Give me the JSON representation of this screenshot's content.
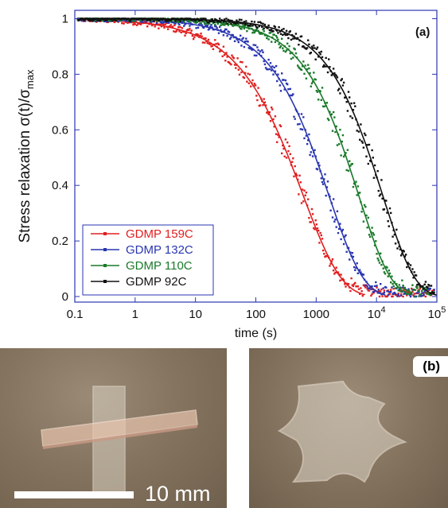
{
  "chart_data": {
    "type": "scatter",
    "panel_label": "(a)",
    "xlabel": "time (s)",
    "ylabel_main": "Stress relaxation σ(t)/σ",
    "ylabel_sub": "max",
    "x_scale": "log",
    "xlim": [
      0.1,
      100000
    ],
    "ylim": [
      -0.02,
      1.03
    ],
    "x_ticks": [
      {
        "value": 0.1,
        "label": "0.1"
      },
      {
        "value": 1,
        "label": "1"
      },
      {
        "value": 10,
        "label": "10"
      },
      {
        "value": 100,
        "label": "100"
      },
      {
        "value": 1000,
        "label": "1000"
      },
      {
        "value": 10000,
        "label": "10",
        "sup": "4"
      },
      {
        "value": 100000,
        "label": "10",
        "sup": "5"
      }
    ],
    "y_ticks": [
      {
        "value": 0,
        "label": "0"
      },
      {
        "value": 0.2,
        "label": "0.2"
      },
      {
        "value": 0.4,
        "label": "0.4"
      },
      {
        "value": 0.6,
        "label": "0.6"
      },
      {
        "value": 0.8,
        "label": "0.8"
      },
      {
        "value": 1,
        "label": "1"
      }
    ],
    "legend_position": "bottom-left",
    "series": [
      {
        "name": "GDMP 159C",
        "color": "#e02020",
        "tau": 600,
        "beta": 0.68
      },
      {
        "name": "GDMP 132C",
        "color": "#2a36b0",
        "tau": 1600,
        "beta": 0.75
      },
      {
        "name": "GDMP 110C",
        "color": "#1a7a2a",
        "tau": 5000,
        "beta": 0.8
      },
      {
        "name": "GDMP 92C",
        "color": "#111111",
        "tau": 12500,
        "beta": 0.8
      }
    ],
    "x_sample": [
      0.15,
      0.3,
      0.6,
      1,
      2,
      4,
      8,
      15,
      30,
      50,
      80,
      120,
      180,
      250,
      350,
      500,
      700,
      1000,
      1400,
      2000,
      2800,
      4000,
      5500,
      7500,
      10000,
      14000,
      20000,
      28000,
      40000,
      55000,
      75000
    ]
  },
  "photos": {
    "scale_label": "10 mm",
    "panel_label": "(b)"
  }
}
